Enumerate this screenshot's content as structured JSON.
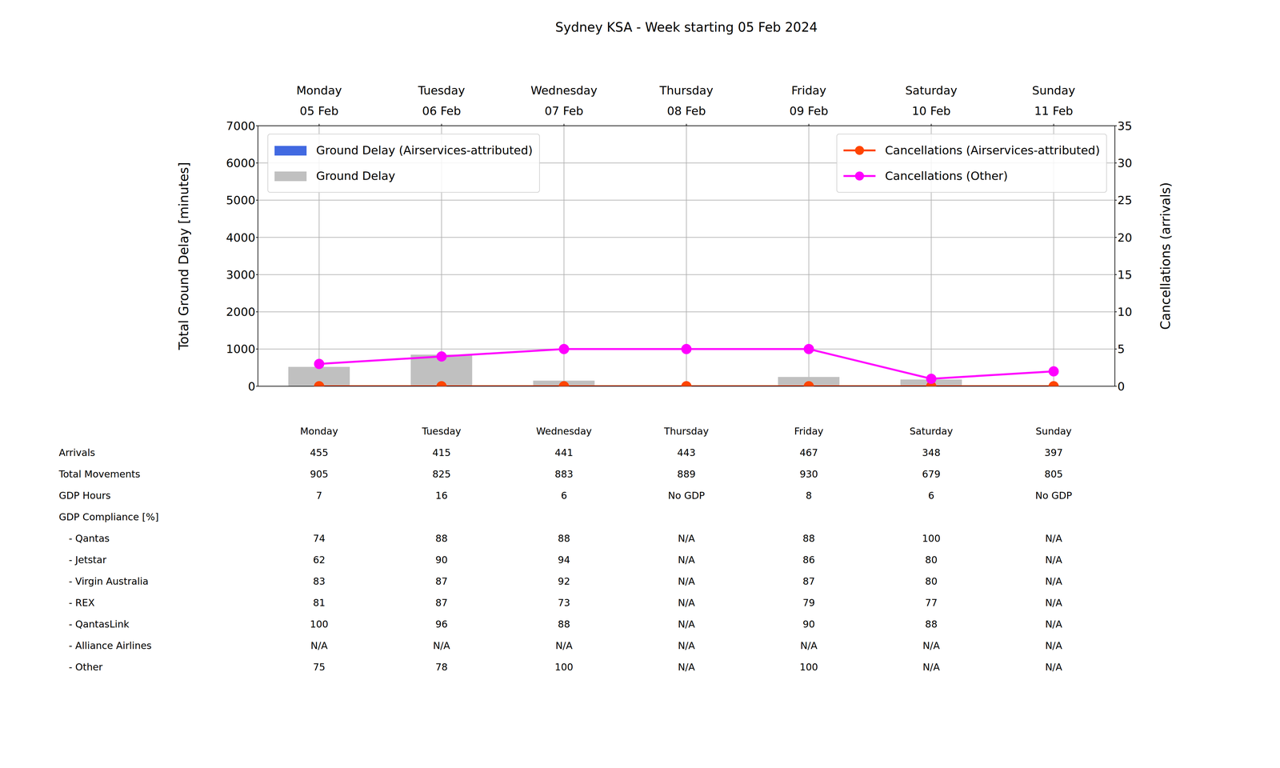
{
  "chart_data": {
    "type": "bar",
    "title": "Sydney KSA - Week starting 05 Feb 2024",
    "categories": [
      "Monday",
      "Tuesday",
      "Wednesday",
      "Thursday",
      "Friday",
      "Saturday",
      "Sunday"
    ],
    "dates": [
      "05 Feb",
      "06 Feb",
      "07 Feb",
      "08 Feb",
      "09 Feb",
      "10 Feb",
      "11 Feb"
    ],
    "y_label": "Total Ground Delay [minutes]",
    "y2_label": "Cancellations (arrivals)",
    "ylim": [
      0,
      7000
    ],
    "yticks": [
      0,
      1000,
      2000,
      3000,
      4000,
      5000,
      6000,
      7000
    ],
    "y2lim": [
      0,
      35
    ],
    "y2ticks": [
      0,
      5,
      10,
      15,
      20,
      25,
      30,
      35
    ],
    "grid": true,
    "legend": "upper",
    "series": [
      {
        "name": "Ground Delay",
        "type": "bar",
        "color": "#c0c0c0",
        "values": [
          520,
          850,
          150,
          0,
          250,
          180,
          0
        ]
      },
      {
        "name": "Ground Delay (Airservices-attributed)",
        "type": "bar",
        "color": "#4169e1",
        "values": [
          0,
          0,
          0,
          0,
          0,
          0,
          0
        ]
      },
      {
        "name": "Cancellations (Airservices-attributed)",
        "type": "line",
        "axis": "y2",
        "marker": "o",
        "color": "#ff4500",
        "values": [
          0,
          0,
          0,
          0,
          0,
          0,
          0
        ]
      },
      {
        "name": "Cancellations (Other)",
        "type": "line",
        "axis": "y2",
        "marker": "o",
        "color": "#ff00ff",
        "values": [
          3,
          4,
          5,
          5,
          5,
          1,
          2
        ]
      }
    ]
  },
  "table": {
    "columns": [
      "Monday",
      "Tuesday",
      "Wednesday",
      "Thursday",
      "Friday",
      "Saturday",
      "Sunday"
    ],
    "rows": [
      {
        "label": "Arrivals",
        "values": [
          455,
          415,
          441,
          443,
          467,
          348,
          397
        ]
      },
      {
        "label": "Total Movements",
        "values": [
          905,
          825,
          883,
          889,
          930,
          679,
          805
        ]
      },
      {
        "label": "GDP Hours",
        "values": [
          7,
          16,
          6,
          "No GDP",
          8,
          6,
          "No GDP"
        ]
      },
      {
        "label": "GDP Compliance [%]",
        "rows": [
          {
            "label": "- Qantas",
            "values": [
              74,
              88,
              88,
              "N/A",
              88,
              100,
              "N/A"
            ]
          },
          {
            "label": "- Jetstar",
            "values": [
              62,
              90,
              94,
              "N/A",
              86,
              80,
              "N/A"
            ]
          },
          {
            "label": "- Virgin Australia",
            "values": [
              83,
              87,
              92,
              "N/A",
              87,
              80,
              "N/A"
            ]
          },
          {
            "label": "- REX",
            "values": [
              81,
              87,
              73,
              "N/A",
              79,
              77,
              "N/A"
            ]
          },
          {
            "label": "- QantasLink",
            "values": [
              100,
              96,
              88,
              "N/A",
              90,
              88,
              "N/A"
            ]
          },
          {
            "label": "- Alliance Airlines",
            "values": [
              "N/A",
              "N/A",
              "N/A",
              "N/A",
              "N/A",
              "N/A",
              "N/A"
            ]
          },
          {
            "label": "- Other",
            "values": [
              75,
              78,
              100,
              "N/A",
              100,
              "N/A",
              "N/A"
            ]
          }
        ]
      }
    ]
  }
}
